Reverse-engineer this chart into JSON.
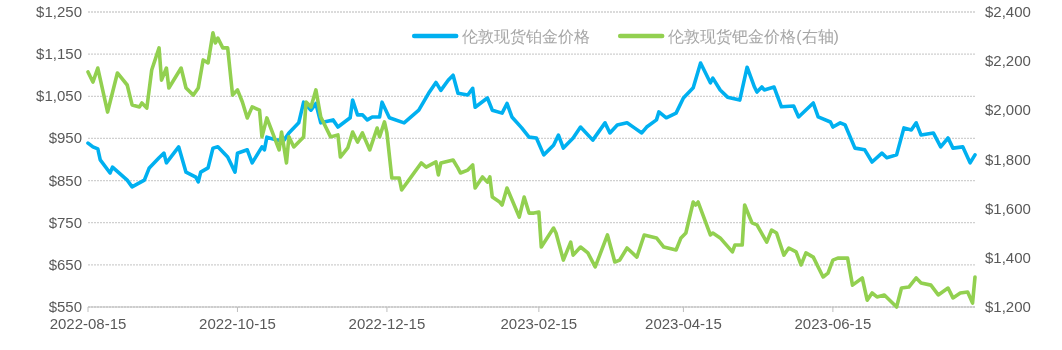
{
  "chart_data": {
    "type": "line",
    "ylim": [
      550,
      1250
    ],
    "yticks": [
      {
        "value": 550,
        "label": "$550"
      },
      {
        "value": 650,
        "label": "$650"
      },
      {
        "value": 750,
        "label": "$750"
      },
      {
        "value": 850,
        "label": "$850"
      },
      {
        "value": 950,
        "label": "$950"
      },
      {
        "value": 1050,
        "label": "$1,050"
      },
      {
        "value": 1150,
        "label": "$1,150"
      },
      {
        "value": 1250,
        "label": "$1,250"
      }
    ],
    "y2lim": [
      1200,
      2400
    ],
    "y2ticks": [
      {
        "value": 1200,
        "label": "$1,200"
      },
      {
        "value": 1400,
        "label": "$1,400"
      },
      {
        "value": 1600,
        "label": "$1,600"
      },
      {
        "value": 1800,
        "label": "$1,800"
      },
      {
        "value": 2000,
        "label": "$2,000"
      },
      {
        "value": 2200,
        "label": "$2,200"
      },
      {
        "value": 2400,
        "label": "$2,400"
      }
    ],
    "xlim": [
      "2022-08-15",
      "2023-08-12"
    ],
    "xticks": [
      "2022-08-15",
      "2022-10-15",
      "2022-12-15",
      "2023-02-15",
      "2023-04-15",
      "2023-06-15"
    ],
    "grid": "y",
    "legend": "top",
    "series": [
      {
        "name": "伦敦现货铂金价格",
        "color": "#00b0f0",
        "x": [
          "2022-08-15",
          "2022-08-17",
          "2022-08-19",
          "2022-08-20",
          "2022-08-24",
          "2022-08-25",
          "2022-08-31",
          "2022-09-02",
          "2022-09-07",
          "2022-09-09",
          "2022-09-13",
          "2022-09-15",
          "2022-09-16",
          "2022-09-21",
          "2022-09-24",
          "2022-09-28",
          "2022-09-29",
          "2022-09-30",
          "2022-10-03",
          "2022-10-05",
          "2022-10-07",
          "2022-10-11",
          "2022-10-14",
          "2022-10-15",
          "2022-10-19",
          "2022-10-21",
          "2022-10-25",
          "2022-10-26",
          "2022-10-27",
          "2022-10-31",
          "2022-11-03",
          "2022-11-05",
          "2022-11-09",
          "2022-11-11",
          "2022-11-14",
          "2022-11-16",
          "2022-11-18",
          "2022-11-23",
          "2022-11-25",
          "2022-11-30",
          "2022-12-01",
          "2022-12-03",
          "2022-12-05",
          "2022-12-07",
          "2022-12-09",
          "2022-12-12",
          "2022-12-13",
          "2022-12-16",
          "2022-12-22",
          "2022-12-28",
          "2023-01-01",
          "2023-01-04",
          "2023-01-06",
          "2023-01-09",
          "2023-01-11",
          "2023-01-13",
          "2023-01-17",
          "2023-01-19",
          "2023-01-20",
          "2023-01-25",
          "2023-01-27",
          "2023-01-31",
          "2023-02-02",
          "2023-02-04",
          "2023-02-08",
          "2023-02-11",
          "2023-02-14",
          "2023-02-17",
          "2023-02-21",
          "2023-02-23",
          "2023-02-25",
          "2023-03-01",
          "2023-03-04",
          "2023-03-09",
          "2023-03-14",
          "2023-03-16",
          "2023-03-19",
          "2023-03-23",
          "2023-03-26",
          "2023-03-29",
          "2023-03-31",
          "2023-04-04",
          "2023-04-05",
          "2023-04-08",
          "2023-04-12",
          "2023-04-15",
          "2023-04-19",
          "2023-04-22",
          "2023-04-26",
          "2023-04-27",
          "2023-04-30",
          "2023-05-03",
          "2023-05-08",
          "2023-05-11",
          "2023-05-14",
          "2023-05-15",
          "2023-05-17",
          "2023-05-18",
          "2023-05-22",
          "2023-05-25",
          "2023-05-30",
          "2023-06-01",
          "2023-06-07",
          "2023-06-09",
          "2023-06-14",
          "2023-06-15",
          "2023-06-18",
          "2023-06-20",
          "2023-06-24",
          "2023-06-28",
          "2023-07-01",
          "2023-07-05",
          "2023-07-07",
          "2023-07-11",
          "2023-07-14",
          "2023-07-17",
          "2023-07-19",
          "2023-07-21",
          "2023-07-26",
          "2023-07-29",
          "2023-08-01",
          "2023-08-03",
          "2023-08-07",
          "2023-08-10",
          "2023-08-12"
        ],
        "values": [
          939,
          930,
          925,
          899,
          868,
          882,
          851,
          835,
          851,
          880,
          904,
          915,
          892,
          930,
          870,
          858,
          847,
          870,
          880,
          927,
          930,
          906,
          870,
          915,
          923,
          892,
          930,
          923,
          953,
          946,
          946,
          963,
          987,
          1036,
          1017,
          1033,
          987,
          994,
          977,
          999,
          1041,
          1006,
          1006,
          994,
          1001,
          1001,
          1036,
          999,
          987,
          1017,
          1057,
          1083,
          1064,
          1088,
          1100,
          1057,
          1053,
          1069,
          1024,
          1046,
          1017,
          1010,
          1033,
          1001,
          975,
          953,
          951,
          911,
          934,
          958,
          927,
          951,
          977,
          946,
          987,
          963,
          982,
          987,
          975,
          963,
          977,
          994,
          1013,
          999,
          1010,
          1046,
          1070,
          1129,
          1082,
          1093,
          1065,
          1048,
          1041,
          1119,
          1072,
          1060,
          1072,
          1065,
          1072,
          1025,
          1027,
          1001,
          1034,
          1001,
          989,
          977,
          987,
          982,
          927,
          923,
          894,
          915,
          904,
          911,
          975,
          970,
          987,
          958,
          963,
          930,
          951,
          927,
          930,
          892,
          911
        ]
      },
      {
        "name": "伦敦现货钯金价格(右轴)",
        "color": "#92d050",
        "axis": "y2",
        "x": [
          "2022-08-15",
          "2022-08-17",
          "2022-08-19",
          "2022-08-23",
          "2022-08-27",
          "2022-08-31",
          "2022-09-02",
          "2022-09-05",
          "2022-09-06",
          "2022-09-08",
          "2022-09-10",
          "2022-09-13",
          "2022-09-14",
          "2022-09-16",
          "2022-09-17",
          "2022-09-22",
          "2022-09-24",
          "2022-09-27",
          "2022-09-29",
          "2022-10-01",
          "2022-10-03",
          "2022-10-05",
          "2022-10-06",
          "2022-10-07",
          "2022-10-09",
          "2022-10-11",
          "2022-10-13",
          "2022-10-15",
          "2022-10-17",
          "2022-10-19",
          "2022-10-21",
          "2022-10-24",
          "2022-10-25",
          "2022-10-27",
          "2022-11-01",
          "2022-11-02",
          "2022-11-04",
          "2022-11-05",
          "2022-11-07",
          "2022-11-11",
          "2022-11-12",
          "2022-11-14",
          "2022-11-16",
          "2022-11-18",
          "2022-11-22",
          "2022-11-25",
          "2022-11-26",
          "2022-11-29",
          "2022-12-01",
          "2022-12-03",
          "2022-12-05",
          "2022-12-08",
          "2022-12-11",
          "2022-12-12",
          "2022-12-14",
          "2022-12-15",
          "2022-12-17",
          "2022-12-20",
          "2022-12-21",
          "2022-12-24",
          "2022-12-29",
          "2022-12-31",
          "2023-01-04",
          "2023-01-05",
          "2023-01-06",
          "2023-01-11",
          "2023-01-13",
          "2023-01-14",
          "2023-01-17",
          "2023-01-19",
          "2023-01-20",
          "2023-01-23",
          "2023-01-25",
          "2023-01-26",
          "2023-01-27",
          "2023-01-30",
          "2023-01-31",
          "2023-02-02",
          "2023-02-07",
          "2023-02-09",
          "2023-02-11",
          "2023-02-13",
          "2023-02-15",
          "2023-02-16",
          "2023-02-21",
          "2023-02-22",
          "2023-02-25",
          "2023-02-28",
          "2023-03-01",
          "2023-03-04",
          "2023-03-07",
          "2023-03-10",
          "2023-03-15",
          "2023-03-18",
          "2023-03-20",
          "2023-03-23",
          "2023-03-27",
          "2023-03-30",
          "2023-04-04",
          "2023-04-07",
          "2023-04-12",
          "2023-04-14",
          "2023-04-16",
          "2023-04-19",
          "2023-04-20",
          "2023-04-21",
          "2023-04-26",
          "2023-04-27",
          "2023-04-30",
          "2023-05-05",
          "2023-05-06",
          "2023-05-09",
          "2023-05-10",
          "2023-05-12",
          "2023-05-13",
          "2023-05-15",
          "2023-05-19",
          "2023-05-21",
          "2023-05-23",
          "2023-05-26",
          "2023-05-28",
          "2023-05-31",
          "2023-06-02",
          "2023-06-04",
          "2023-06-07",
          "2023-06-11",
          "2023-06-13",
          "2023-06-15",
          "2023-06-17",
          "2023-06-21",
          "2023-06-23",
          "2023-06-27",
          "2023-06-29",
          "2023-07-01",
          "2023-07-03",
          "2023-07-06",
          "2023-07-11",
          "2023-07-13",
          "2023-07-16",
          "2023-07-19",
          "2023-07-21",
          "2023-07-25",
          "2023-07-28",
          "2023-08-01",
          "2023-08-03",
          "2023-08-06",
          "2023-08-09",
          "2023-08-11",
          "2023-08-12"
        ],
        "values": [
          2156,
          2115,
          2172,
          1993,
          2152,
          2103,
          2022,
          2014,
          2030,
          2009,
          2164,
          2254,
          2123,
          2172,
          2091,
          2172,
          2091,
          2062,
          2091,
          2205,
          2193,
          2315,
          2274,
          2294,
          2254,
          2254,
          2062,
          2083,
          2034,
          1969,
          2014,
          2001,
          1892,
          1969,
          1839,
          1912,
          1786,
          1892,
          1851,
          1892,
          2034,
          2014,
          2083,
          1973,
          1892,
          1900,
          1810,
          1847,
          1912,
          1871,
          1908,
          1839,
          1928,
          1892,
          1953,
          1908,
          1725,
          1725,
          1676,
          1717,
          1786,
          1769,
          1790,
          1737,
          1786,
          1798,
          1765,
          1745,
          1757,
          1778,
          1684,
          1729,
          1708,
          1729,
          1647,
          1627,
          1615,
          1684,
          1566,
          1647,
          1582,
          1582,
          1586,
          1444,
          1521,
          1501,
          1391,
          1464,
          1411,
          1444,
          1420,
          1363,
          1493,
          1383,
          1391,
          1440,
          1403,
          1493,
          1481,
          1444,
          1432,
          1481,
          1501,
          1627,
          1615,
          1627,
          1493,
          1501,
          1481,
          1424,
          1452,
          1452,
          1615,
          1566,
          1542,
          1534,
          1464,
          1513,
          1501,
          1411,
          1440,
          1424,
          1371,
          1420,
          1403,
          1322,
          1338,
          1391,
          1399,
          1399,
          1289,
          1318,
          1228,
          1257,
          1241,
          1249,
          1200,
          1277,
          1281,
          1318,
          1298,
          1289,
          1249,
          1277,
          1237,
          1257,
          1261,
          1216,
          1322
        ]
      }
    ]
  }
}
